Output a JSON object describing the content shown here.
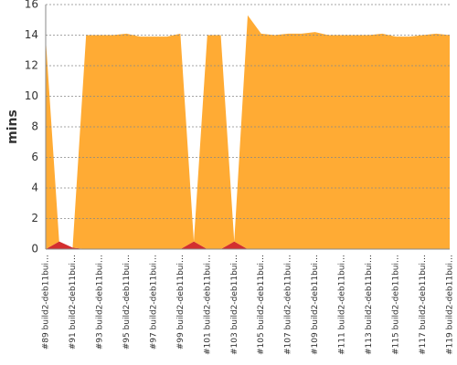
{
  "chart_data": {
    "type": "stacked_area",
    "y_label": "mins",
    "categories": [
      "#89 build2-deb11bui…",
      null,
      "#91 build2-deb11bui…",
      null,
      "#93 build2-deb11bui…",
      null,
      "#95 build2-deb11bui…",
      null,
      "#97 build2-deb11bui…",
      null,
      "#99 build2-deb11bui…",
      null,
      "#101 build2-deb11bui…",
      null,
      "#103 build2-deb11bui…",
      null,
      "#105 build2-deb11bui…",
      null,
      "#107 build2-deb11bui…",
      null,
      "#109 build2-deb11bui…",
      null,
      "#111 build2-deb11bui…",
      null,
      "#113 build2-deb11bui…",
      null,
      "#115 build2-deb11bui…",
      null,
      "#117 build2-deb11bui…",
      null,
      "#119 build2-deb11bui…"
    ],
    "series": [
      {
        "color": "#d32f2f",
        "values": [
          0,
          0.5,
          0.1,
          0,
          0,
          0,
          0,
          0,
          0,
          0,
          0,
          0.5,
          0,
          0,
          0.5,
          0,
          0,
          0,
          0,
          0,
          0,
          0,
          0,
          0,
          0,
          0,
          0,
          0,
          0,
          0,
          0
        ]
      },
      {
        "color": "#ffab34",
        "values": [
          13.8,
          0,
          0,
          14,
          14,
          14,
          14.1,
          13.9,
          13.9,
          13.9,
          14.1,
          0,
          14,
          14,
          0,
          15.3,
          14.1,
          14,
          14.1,
          14.1,
          14.2,
          14,
          14,
          14,
          14,
          14.1,
          13.9,
          13.9,
          14,
          14.1,
          14
        ]
      }
    ],
    "ylim": [
      0,
      16
    ],
    "yticks": [
      0,
      2,
      4,
      6,
      8,
      10,
      12,
      14,
      16
    ],
    "grid": true
  }
}
